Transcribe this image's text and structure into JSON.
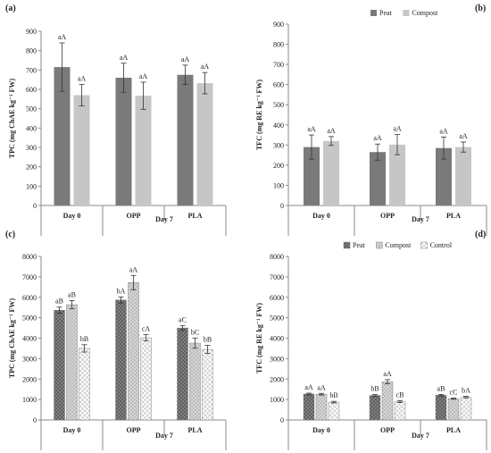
{
  "chart_data": [
    {
      "type": "bar",
      "panel_label": "(a)",
      "ylabel": "TPC (mg ChAE kg⁻¹ FW)",
      "ylim": [
        0,
        900
      ],
      "yticks": [
        0,
        100,
        200,
        300,
        400,
        500,
        600,
        700,
        800,
        900
      ],
      "groups": [
        {
          "label": "Day 0"
        },
        {
          "label": "OPP"
        },
        {
          "label": "PLA"
        }
      ],
      "day_labels": [
        "Day 0",
        "Day 7"
      ],
      "series": [
        {
          "name": "Peat",
          "values": [
            715,
            660,
            675
          ],
          "errors": [
            125,
            75,
            50
          ],
          "letters": [
            "aA",
            "aA",
            "aA"
          ]
        },
        {
          "name": "Compost",
          "values": [
            570,
            567,
            632
          ],
          "errors": [
            55,
            70,
            55
          ],
          "letters": [
            "aA",
            "aA",
            "aA"
          ]
        }
      ],
      "legend": false
    },
    {
      "type": "bar",
      "panel_label": "(b)",
      "ylabel": "TFC (mg RE kg⁻¹ FW)",
      "ylim": [
        0,
        900
      ],
      "yticks": [
        0,
        100,
        200,
        300,
        400,
        500,
        600,
        700,
        800,
        900
      ],
      "groups": [
        {
          "label": "Day 0"
        },
        {
          "label": "OPP"
        },
        {
          "label": "PLA"
        }
      ],
      "day_labels": [
        "Day 0",
        "Day 7"
      ],
      "series": [
        {
          "name": "Peat",
          "values": [
            290,
            265,
            285
          ],
          "errors": [
            60,
            40,
            55
          ],
          "letters": [
            "aA",
            "aA",
            "aA"
          ]
        },
        {
          "name": "Compost",
          "values": [
            320,
            302,
            290
          ],
          "errors": [
            22,
            50,
            25
          ],
          "letters": [
            "aA",
            "aA",
            "aA"
          ]
        }
      ],
      "legend": true,
      "legend_position": "top-right"
    },
    {
      "type": "bar",
      "panel_label": "(c)",
      "ylabel": "TPC (mg ChAE kg⁻¹ FW)",
      "ylim": [
        0,
        8000
      ],
      "yticks": [
        0,
        1000,
        2000,
        3000,
        4000,
        5000,
        6000,
        7000,
        8000
      ],
      "groups": [
        {
          "label": "Day 0"
        },
        {
          "label": "OPP"
        },
        {
          "label": "PLA"
        }
      ],
      "day_labels": [
        "Day 0",
        "Day 7"
      ],
      "series": [
        {
          "name": "Peat",
          "values": [
            5370,
            5870,
            4500
          ],
          "errors": [
            150,
            150,
            120
          ],
          "letters": [
            "aB",
            "bA",
            "aC"
          ]
        },
        {
          "name": "Compost",
          "values": [
            5640,
            6720,
            3760
          ],
          "errors": [
            200,
            350,
            250
          ],
          "letters": [
            "aB",
            "aA",
            "bC"
          ]
        },
        {
          "name": "Control",
          "values": [
            3500,
            4020,
            3450
          ],
          "errors": [
            180,
            150,
            200
          ],
          "letters": [
            "bB",
            "cA",
            "bB"
          ]
        }
      ],
      "legend": false
    },
    {
      "type": "bar",
      "panel_label": "(d)",
      "ylabel": "TFC (mg RE kg⁻¹ FW)",
      "ylim": [
        0,
        8000
      ],
      "yticks": [
        0,
        1000,
        2000,
        3000,
        4000,
        5000,
        6000,
        7000,
        8000
      ],
      "groups": [
        {
          "label": "Day 0"
        },
        {
          "label": "OPP"
        },
        {
          "label": "PLA"
        }
      ],
      "day_labels": [
        "Day 0",
        "Day 7"
      ],
      "series": [
        {
          "name": "Peat",
          "values": [
            1270,
            1200,
            1210
          ],
          "errors": [
            40,
            40,
            40
          ],
          "letters": [
            "aA",
            "bB",
            "aB"
          ]
        },
        {
          "name": "Compost",
          "values": [
            1260,
            1870,
            1040
          ],
          "errors": [
            40,
            100,
            30
          ],
          "letters": [
            "aA",
            "aA",
            "cC"
          ]
        },
        {
          "name": "Control",
          "values": [
            870,
            900,
            1120
          ],
          "errors": [
            40,
            50,
            40
          ],
          "letters": [
            "bB",
            "cB",
            "bA"
          ]
        }
      ],
      "legend": true,
      "legend_position": "top-right"
    }
  ],
  "colors": {
    "peat": "#6b6b6b",
    "compost": "#c4c4c4",
    "control": "#ffffff",
    "axis": "#8a8a8a",
    "bar_edge": "#6f6f6f"
  }
}
